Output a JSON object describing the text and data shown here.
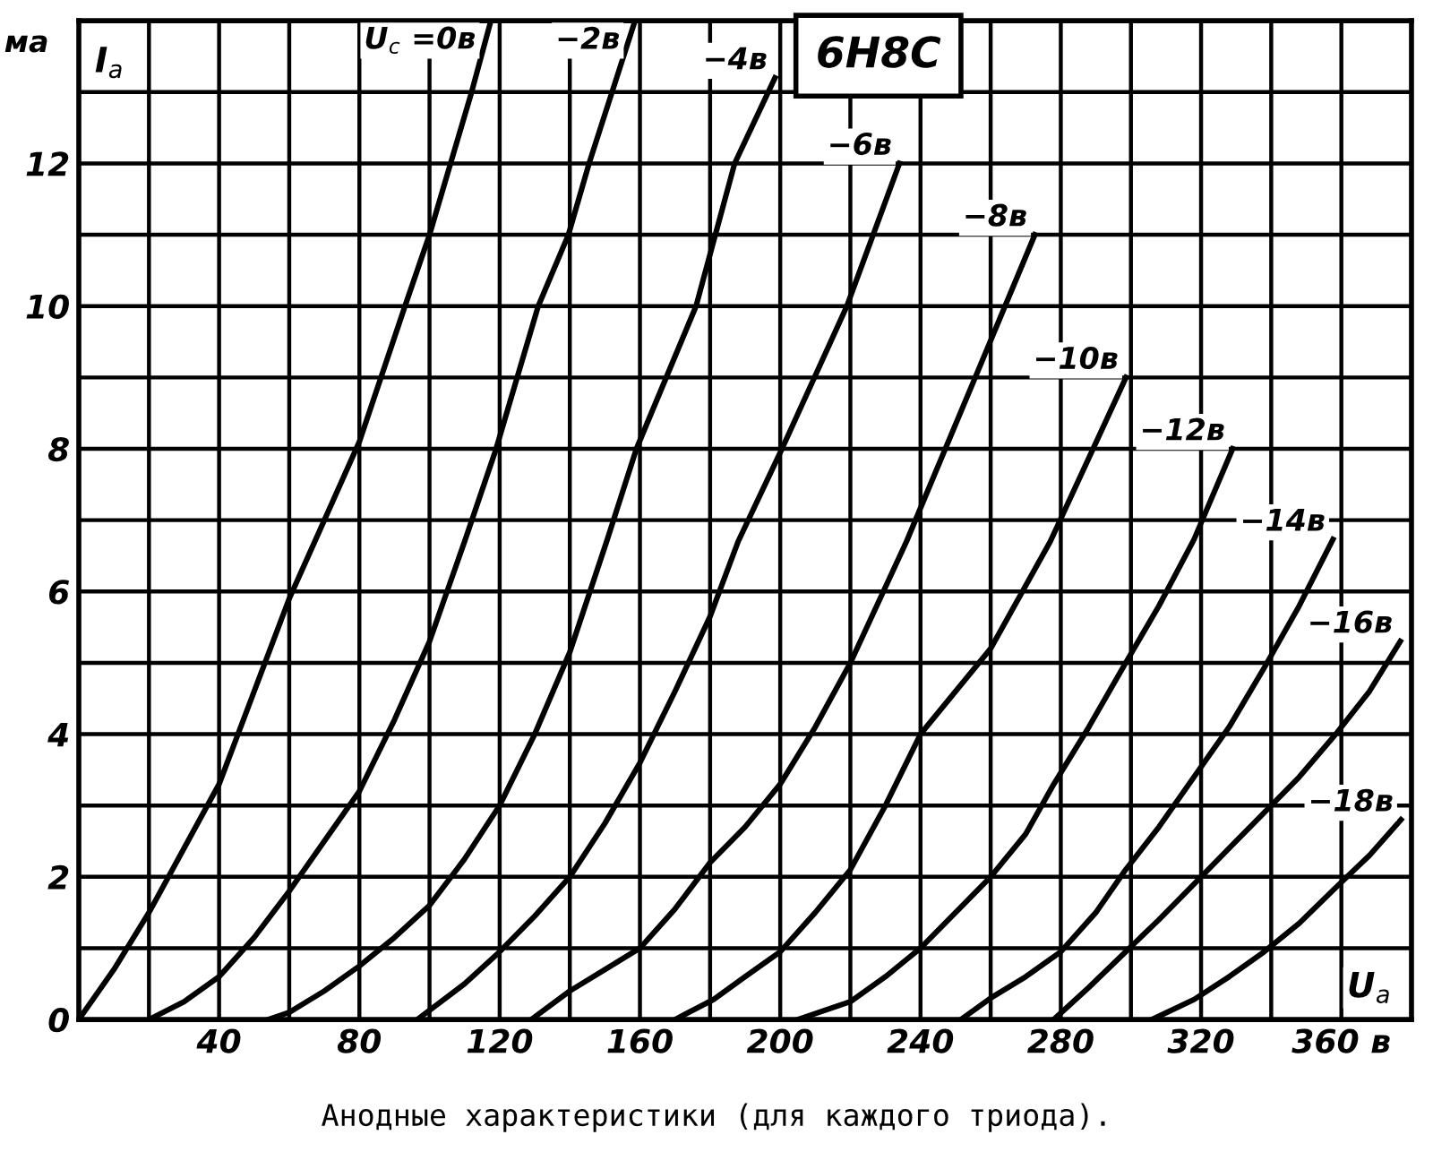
{
  "chart_data": {
    "type": "line",
    "title": "6Н8С",
    "xlabel": "U$_{a}$",
    "ylabel": "I$_{a}$",
    "annotations": [
      "ма",
      "Анодные характеристики (для каждого триода)."
    ],
    "xlim": [
      0,
      380
    ],
    "ylim": [
      0,
      14
    ],
    "xticks": [
      {
        "value": 0,
        "label": null
      },
      {
        "value": 20,
        "label": null
      },
      40,
      {
        "value": 60,
        "label": null
      },
      80,
      {
        "value": 100,
        "label": null
      },
      120,
      {
        "value": 140,
        "label": null
      },
      160,
      {
        "value": 180,
        "label": null
      },
      200,
      {
        "value": 220,
        "label": null
      },
      240,
      {
        "value": 260,
        "label": null
      },
      280,
      {
        "value": 300,
        "label": null
      },
      320,
      {
        "value": 340,
        "label": null
      },
      {
        "value": 360,
        "label": "360 в"
      },
      {
        "value": 380,
        "label": null
      }
    ],
    "yticks": [
      0,
      {
        "value": 1,
        "label": null
      },
      2,
      {
        "value": 3,
        "label": null
      },
      4,
      {
        "value": 5,
        "label": null
      },
      6,
      {
        "value": 7,
        "label": null
      },
      8,
      {
        "value": 9,
        "label": null
      },
      10,
      {
        "value": 11,
        "label": null
      },
      12,
      {
        "value": 13,
        "label": null
      },
      {
        "value": 14,
        "label": null
      }
    ],
    "grid": true,
    "legend": false,
    "marker": "none",
    "line_style": "solid",
    "series": [
      {
        "name": "U$_{c}$ =0в",
        "color": "#000000",
        "x": [
          0,
          10,
          20,
          30,
          40,
          50,
          60,
          70,
          80,
          93,
          100,
          106,
          112,
          117.5
        ],
        "values": [
          0,
          0.7,
          1.5,
          2.4,
          3.3,
          4.6,
          5.9,
          7.0,
          8.1,
          10.0,
          11.0,
          12.0,
          13.0,
          14.0
        ]
      },
      {
        "name": "−2в",
        "color": "#000000",
        "x": [
          20,
          30,
          40,
          50,
          60,
          70,
          80,
          90,
          100,
          110,
          119,
          131,
          139.6,
          145.5,
          158.6
        ],
        "values": [
          0,
          0.25,
          0.6,
          1.15,
          1.8,
          2.5,
          3.2,
          4.2,
          5.3,
          6.7,
          8.0,
          10.0,
          11.0,
          12.0,
          14.0
        ]
      },
      {
        "name": "−4в",
        "color": "#000000",
        "x": [
          54,
          60,
          70,
          80,
          90,
          100,
          110,
          120,
          130,
          140,
          150.5,
          159,
          176,
          187,
          198.5
        ],
        "values": [
          0,
          0.1,
          0.4,
          0.75,
          1.15,
          1.6,
          2.25,
          3.0,
          4.0,
          5.15,
          6.7,
          8.0,
          10.0,
          12.0,
          13.2
        ]
      },
      {
        "name": "−6в",
        "color": "#000000",
        "x": [
          96.5,
          110,
          120,
          130,
          140,
          150,
          160,
          170,
          180,
          188,
          200.5,
          219,
          234
        ],
        "values": [
          0,
          0.5,
          0.95,
          1.45,
          2.0,
          2.75,
          3.6,
          4.6,
          5.65,
          6.7,
          8.0,
          10.0,
          12.0
        ]
      },
      {
        "name": "−8в",
        "color": "#000000",
        "x": [
          129,
          140,
          150,
          160,
          170,
          180,
          190,
          200,
          210,
          220,
          236,
          255.6,
          272.6
        ],
        "values": [
          0,
          0.4,
          0.7,
          1.0,
          1.55,
          2.2,
          2.7,
          3.3,
          4.1,
          5.0,
          6.7,
          9.0,
          11.0
        ]
      },
      {
        "name": "−10в",
        "color": "#000000",
        "x": [
          170,
          181,
          190,
          200,
          210,
          220,
          230,
          240,
          250,
          260,
          277,
          298.6
        ],
        "values": [
          0,
          0.28,
          0.6,
          0.95,
          1.5,
          2.1,
          3.0,
          4.0,
          4.6,
          5.2,
          6.7,
          9.0
        ]
      },
      {
        "name": "−12в",
        "color": "#000000",
        "x": [
          205,
          220,
          230,
          240,
          250,
          260,
          270,
          278,
          288,
          298.5,
          308,
          318,
          329
        ],
        "values": [
          0,
          0.25,
          0.6,
          1.0,
          1.5,
          2.0,
          2.6,
          3.3,
          4.1,
          5.0,
          5.8,
          6.73,
          8.0
        ]
      },
      {
        "name": "−14в",
        "color": "#000000",
        "x": [
          251.5,
          260,
          270,
          280,
          290,
          298.5,
          308,
          318,
          328,
          338,
          348,
          357.6
        ],
        "values": [
          0,
          0.3,
          0.6,
          0.95,
          1.5,
          2.1,
          2.7,
          3.4,
          4.1,
          4.93,
          5.8,
          6.73
        ]
      },
      {
        "name": "−16в",
        "color": "#000000",
        "x": [
          278,
          288,
          298.5,
          308,
          318,
          328,
          338,
          348,
          358.4,
          368,
          376.8
        ],
        "values": [
          0,
          0.45,
          0.95,
          1.4,
          1.9,
          2.4,
          2.9,
          3.4,
          4.0,
          4.6,
          5.3
        ]
      },
      {
        "name": "−18в",
        "color": "#000000",
        "x": [
          306,
          318,
          328,
          338,
          348,
          358,
          368,
          377
        ],
        "values": [
          0,
          0.28,
          0.6,
          0.95,
          1.35,
          1.83,
          2.3,
          2.8
        ]
      }
    ]
  }
}
